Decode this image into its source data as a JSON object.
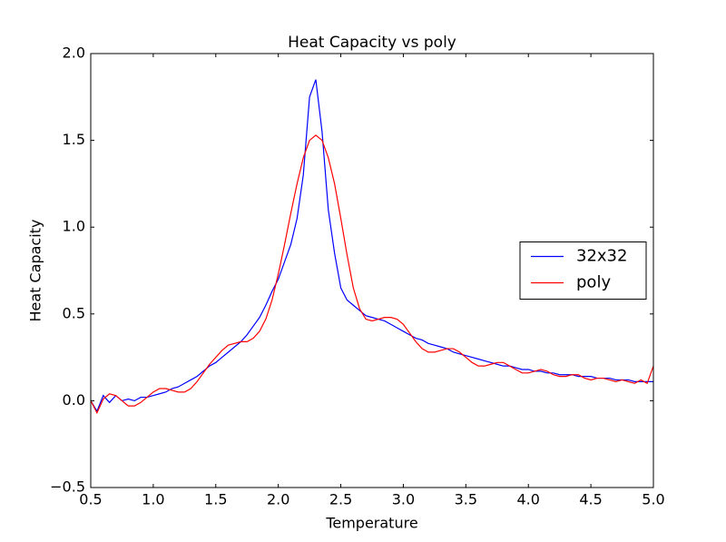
{
  "chart_data": {
    "type": "line",
    "title": "Heat Capacity vs poly",
    "xlabel": "Temperature",
    "ylabel": "Heat Capacity",
    "x": [
      0.5,
      0.55,
      0.6,
      0.65,
      0.7,
      0.75,
      0.8,
      0.85,
      0.9,
      0.95,
      1.0,
      1.05,
      1.1,
      1.15,
      1.2,
      1.25,
      1.3,
      1.35,
      1.4,
      1.45,
      1.5,
      1.55,
      1.6,
      1.65,
      1.7,
      1.75,
      1.8,
      1.85,
      1.9,
      1.95,
      2.0,
      2.05,
      2.1,
      2.15,
      2.2,
      2.25,
      2.3,
      2.35,
      2.4,
      2.45,
      2.5,
      2.55,
      2.6,
      2.65,
      2.7,
      2.75,
      2.8,
      2.85,
      2.9,
      2.95,
      3.0,
      3.05,
      3.1,
      3.15,
      3.2,
      3.25,
      3.3,
      3.35,
      3.4,
      3.45,
      3.5,
      3.55,
      3.6,
      3.65,
      3.7,
      3.75,
      3.8,
      3.85,
      3.9,
      3.95,
      4.0,
      4.05,
      4.1,
      4.15,
      4.2,
      4.25,
      4.3,
      4.35,
      4.4,
      4.45,
      4.5,
      4.55,
      4.6,
      4.65,
      4.7,
      4.75,
      4.8,
      4.85,
      4.9,
      4.95,
      5.0
    ],
    "series": [
      {
        "name": "32x32",
        "color": "#0000ff",
        "values": [
          0.0,
          -0.06,
          0.03,
          -0.01,
          0.03,
          0.0,
          0.01,
          0.0,
          0.02,
          0.02,
          0.03,
          0.04,
          0.05,
          0.07,
          0.08,
          0.1,
          0.12,
          0.14,
          0.17,
          0.2,
          0.22,
          0.25,
          0.28,
          0.31,
          0.34,
          0.38,
          0.43,
          0.48,
          0.55,
          0.63,
          0.7,
          0.8,
          0.9,
          1.05,
          1.3,
          1.75,
          1.85,
          1.55,
          1.1,
          0.85,
          0.65,
          0.58,
          0.55,
          0.52,
          0.49,
          0.48,
          0.47,
          0.46,
          0.44,
          0.42,
          0.4,
          0.38,
          0.36,
          0.35,
          0.33,
          0.32,
          0.31,
          0.3,
          0.28,
          0.27,
          0.26,
          0.25,
          0.24,
          0.23,
          0.22,
          0.21,
          0.2,
          0.2,
          0.19,
          0.18,
          0.18,
          0.17,
          0.17,
          0.16,
          0.16,
          0.15,
          0.15,
          0.15,
          0.14,
          0.14,
          0.14,
          0.13,
          0.13,
          0.13,
          0.12,
          0.12,
          0.12,
          0.11,
          0.11,
          0.11,
          0.11
        ]
      },
      {
        "name": "poly",
        "color": "#ff0000",
        "values": [
          0.0,
          -0.07,
          0.01,
          0.04,
          0.03,
          0.0,
          -0.03,
          -0.03,
          -0.01,
          0.02,
          0.05,
          0.07,
          0.07,
          0.06,
          0.05,
          0.05,
          0.07,
          0.11,
          0.16,
          0.21,
          0.25,
          0.29,
          0.32,
          0.33,
          0.34,
          0.34,
          0.36,
          0.4,
          0.47,
          0.58,
          0.73,
          0.9,
          1.08,
          1.25,
          1.4,
          1.5,
          1.53,
          1.5,
          1.4,
          1.25,
          1.05,
          0.84,
          0.65,
          0.53,
          0.47,
          0.46,
          0.47,
          0.48,
          0.48,
          0.47,
          0.44,
          0.39,
          0.34,
          0.3,
          0.28,
          0.28,
          0.29,
          0.3,
          0.3,
          0.28,
          0.25,
          0.22,
          0.2,
          0.2,
          0.21,
          0.22,
          0.22,
          0.2,
          0.18,
          0.16,
          0.16,
          0.17,
          0.18,
          0.17,
          0.15,
          0.14,
          0.14,
          0.15,
          0.15,
          0.13,
          0.12,
          0.13,
          0.13,
          0.12,
          0.11,
          0.12,
          0.11,
          0.1,
          0.12,
          0.1,
          0.2
        ]
      }
    ],
    "xlim": [
      0.5,
      5.0
    ],
    "ylim": [
      -0.5,
      2.0
    ],
    "xticks": [
      0.5,
      {
        "value": 1,
        "label": "1.0"
      },
      1.5,
      {
        "value": 2,
        "label": "2.0"
      },
      2.5,
      {
        "value": 3,
        "label": "3.0"
      },
      3.5,
      {
        "value": 4,
        "label": "4.0"
      },
      4.5,
      {
        "value": 5,
        "label": "5.0"
      }
    ],
    "yticks": [
      {
        "value": -0.5,
        "label": "−0.5"
      },
      {
        "value": 0,
        "label": "0.0"
      },
      0.5,
      {
        "value": 1,
        "label": "1.0"
      },
      1.5,
      {
        "value": 2,
        "label": "2.0"
      }
    ],
    "legend": "center right",
    "grid": false
  }
}
